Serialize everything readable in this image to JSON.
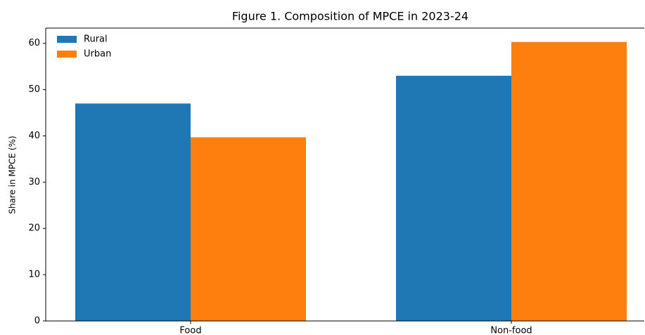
{
  "chart_data": {
    "type": "bar",
    "title": "Figure 1. Composition of MPCE in 2023-24",
    "y_label": "Share in MPCE (%)",
    "categories": [
      "Food",
      "Non-food"
    ],
    "series": [
      {
        "name": "Rural",
        "color": "#1f77b4",
        "values": [
          47.0,
          53.0
        ]
      },
      {
        "name": "Urban",
        "color": "#ff7f0e",
        "values": [
          39.7,
          60.3
        ]
      }
    ],
    "ylim": [
      0,
      63.3
    ],
    "yticks": [
      0,
      10,
      20,
      30,
      40,
      50,
      60
    ],
    "grid": false,
    "legend": "upper-left"
  }
}
